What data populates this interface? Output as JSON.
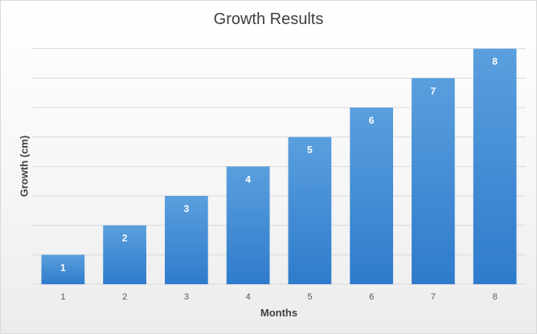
{
  "chart_data": {
    "type": "bar",
    "title": "Growth Results",
    "xlabel": "Months",
    "ylabel": "Growth (cm)",
    "categories": [
      "1",
      "2",
      "3",
      "4",
      "5",
      "6",
      "7",
      "8"
    ],
    "values": [
      1,
      2,
      3,
      4,
      5,
      6,
      7,
      8
    ],
    "data_labels": [
      "1",
      "2",
      "3",
      "4",
      "5",
      "6",
      "7",
      "8"
    ],
    "ylim": [
      0,
      9
    ],
    "grid": true,
    "legend": "none",
    "bar_color": "#3f8ad3",
    "gridline_color": "#d9d9d9"
  }
}
